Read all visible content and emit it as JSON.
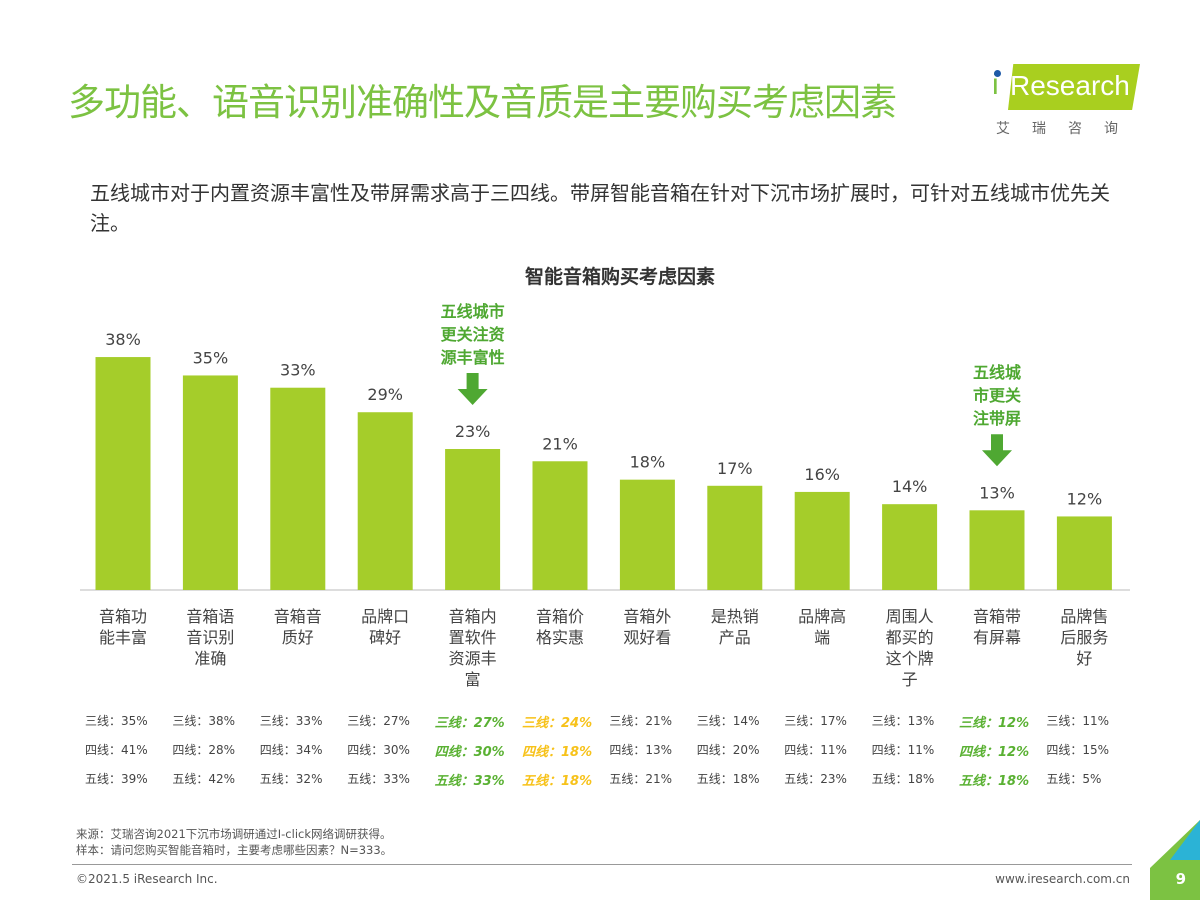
{
  "title": "多功能、语音识别准确性及音质是主要购买考虑因素",
  "logo": {
    "brand": "Research",
    "cn": "艾瑞咨询"
  },
  "subtitle": "五线城市对于内置资源丰富性及带屏需求高于三四线。带屏智能音箱在针对下沉市场扩展时，可针对五线城市优先关注。",
  "colors": {
    "bar": "#a5cd2a",
    "title": "#7cc242",
    "highlight_green": "#5ab133",
    "highlight_yellow": "#f7c21a"
  },
  "chart_data": {
    "type": "bar",
    "title": "智能音箱购买考虑因素",
    "categories": [
      "音箱功能丰富",
      "音箱语音识别准确",
      "音箱音质好",
      "品牌口碑好",
      "音箱内置软件资源丰富",
      "音箱价格实惠",
      "音箱外观好看",
      "是热销产品",
      "品牌高端",
      "周围人都买的这个牌子",
      "音箱带有屏幕",
      "品牌售后服务好"
    ],
    "category_lines": [
      [
        "音箱功",
        "能丰富"
      ],
      [
        "音箱语",
        "音识别",
        "准确"
      ],
      [
        "音箱音",
        "质好"
      ],
      [
        "品牌口",
        "碑好"
      ],
      [
        "音箱内",
        "置软件",
        "资源丰",
        "富"
      ],
      [
        "音箱价",
        "格实惠"
      ],
      [
        "音箱外",
        "观好看"
      ],
      [
        "是热销",
        "产品"
      ],
      [
        "品牌高",
        "端"
      ],
      [
        "周围人",
        "都买的",
        "这个牌",
        "子"
      ],
      [
        "音箱带",
        "有屏幕"
      ],
      [
        "品牌售",
        "后服务",
        "好"
      ]
    ],
    "values": [
      38,
      35,
      33,
      29,
      23,
      21,
      18,
      17,
      16,
      14,
      13,
      12
    ],
    "data_labels": [
      "38%",
      "35%",
      "33%",
      "29%",
      "23%",
      "21%",
      "18%",
      "17%",
      "16%",
      "14%",
      "13%",
      "12%"
    ],
    "ylim": [
      0,
      40
    ],
    "grid": false,
    "annotations": [
      {
        "category_index": 4,
        "text": "五线城市更关注资源丰富性",
        "lines": [
          "五线城市",
          "更关注资",
          "源丰富性"
        ]
      },
      {
        "category_index": 10,
        "text": "五线城市更关注带屏",
        "lines": [
          "五线城",
          "市更关",
          "注带屏"
        ]
      }
    ],
    "breakdown": {
      "rows": [
        "三线",
        "四线",
        "五线"
      ],
      "values": [
        [
          35,
          41,
          39
        ],
        [
          38,
          28,
          42
        ],
        [
          33,
          34,
          32
        ],
        [
          27,
          30,
          33
        ],
        [
          27,
          30,
          33
        ],
        [
          24,
          18,
          18
        ],
        [
          21,
          13,
          21
        ],
        [
          14,
          20,
          18
        ],
        [
          17,
          11,
          23
        ],
        [
          13,
          11,
          18
        ],
        [
          12,
          12,
          18
        ],
        [
          11,
          15,
          5
        ]
      ],
      "highlight": [
        "none",
        "none",
        "none",
        "none",
        "green",
        "yellow",
        "none",
        "none",
        "none",
        "none",
        "green",
        "none"
      ]
    }
  },
  "footer": {
    "source": "来源：艾瑞咨询2021下沉市场调研通过I-click网络调研获得。",
    "sample": "样本：请问您购买智能音箱时，主要考虑哪些因素？N=333。",
    "copyright": "©2021.5 iResearch Inc.",
    "url": "www.iresearch.com.cn",
    "page": "9"
  }
}
